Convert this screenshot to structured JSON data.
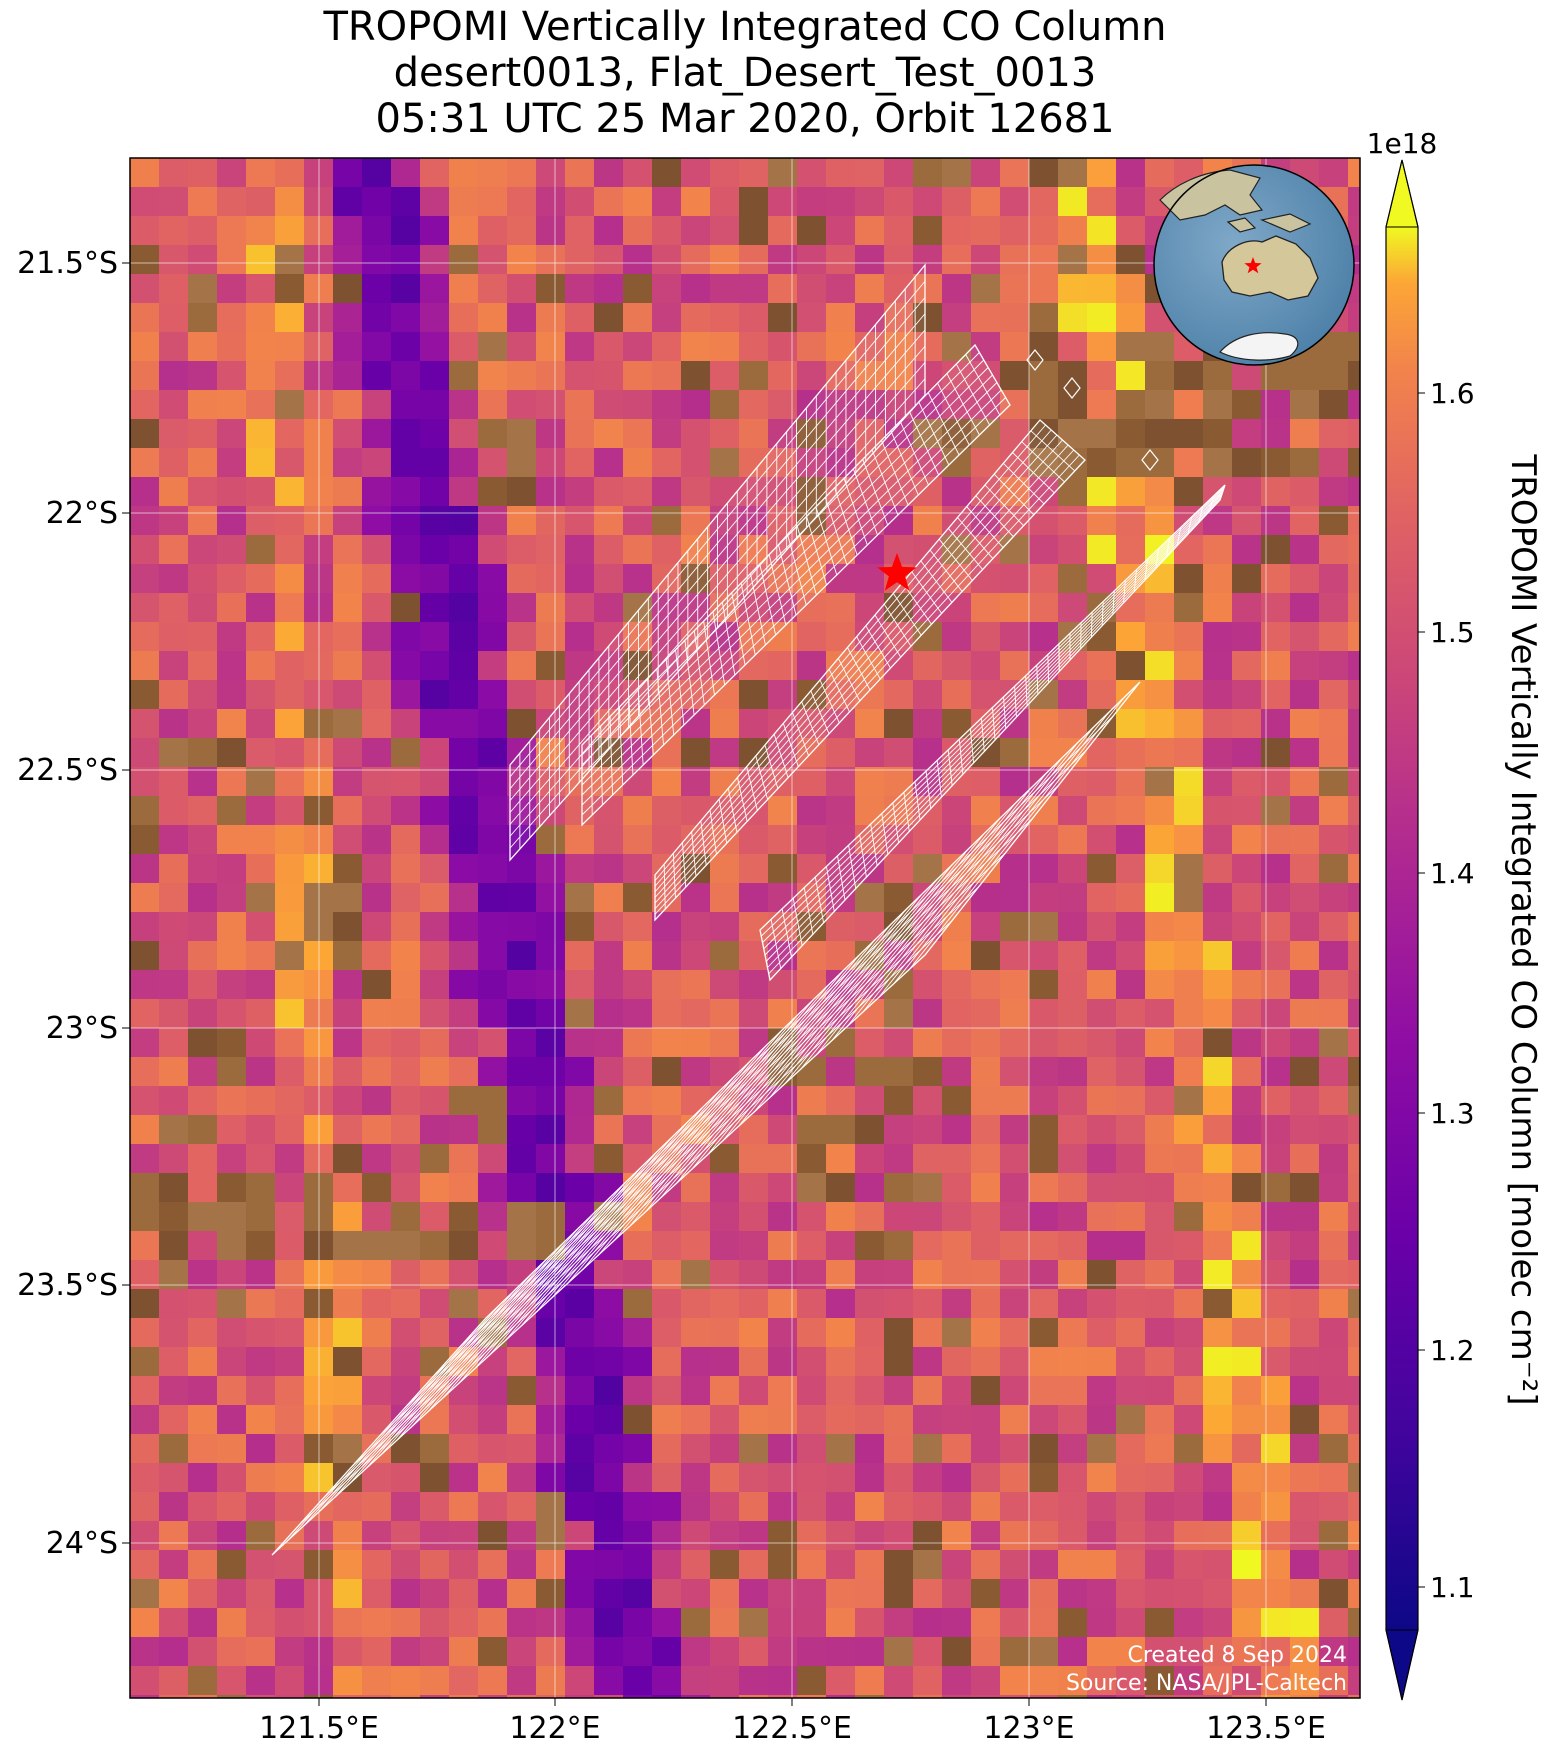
{
  "title": {
    "line1": "TROPOMI Vertically Integrated CO Column",
    "line2": "desert0013, Flat_Desert_Test_0013",
    "line3": "05:31 UTC 25 Mar 2020, Orbit 12681"
  },
  "axes": {
    "lat_ticks": [
      "21.5°S",
      "22°S",
      "22.5°S",
      "23°S",
      "23.5°S",
      "24°S"
    ],
    "lon_ticks": [
      "121.5°E",
      "122°E",
      "122.5°E",
      "123°E",
      "123.5°E"
    ]
  },
  "colorbar": {
    "label": "TROPOMI Vertically Integrated CO Column [molec cm⁻²]",
    "exponent": "1e18",
    "ticks": [
      "1.1",
      "1.2",
      "1.3",
      "1.4",
      "1.5",
      "1.6"
    ],
    "range": [
      1.06,
      1.67
    ],
    "colormap": "plasma"
  },
  "map": {
    "extent_lon": [
      121.1,
      123.7
    ],
    "extent_lat": [
      -24.3,
      -21.3
    ],
    "target_site_marker": "red-star",
    "inset": "globe-australia",
    "overlay": "OCO-3 footprint grid (white outlines)"
  },
  "credits": {
    "created": "Created 8 Sep 2024",
    "source": "Source: NASA/JPL-Caltech"
  },
  "colors": {
    "star": "#ff0000",
    "footprint_outline": "#ffffff",
    "grid": "#ffffff",
    "land": "#9b6b3e"
  }
}
